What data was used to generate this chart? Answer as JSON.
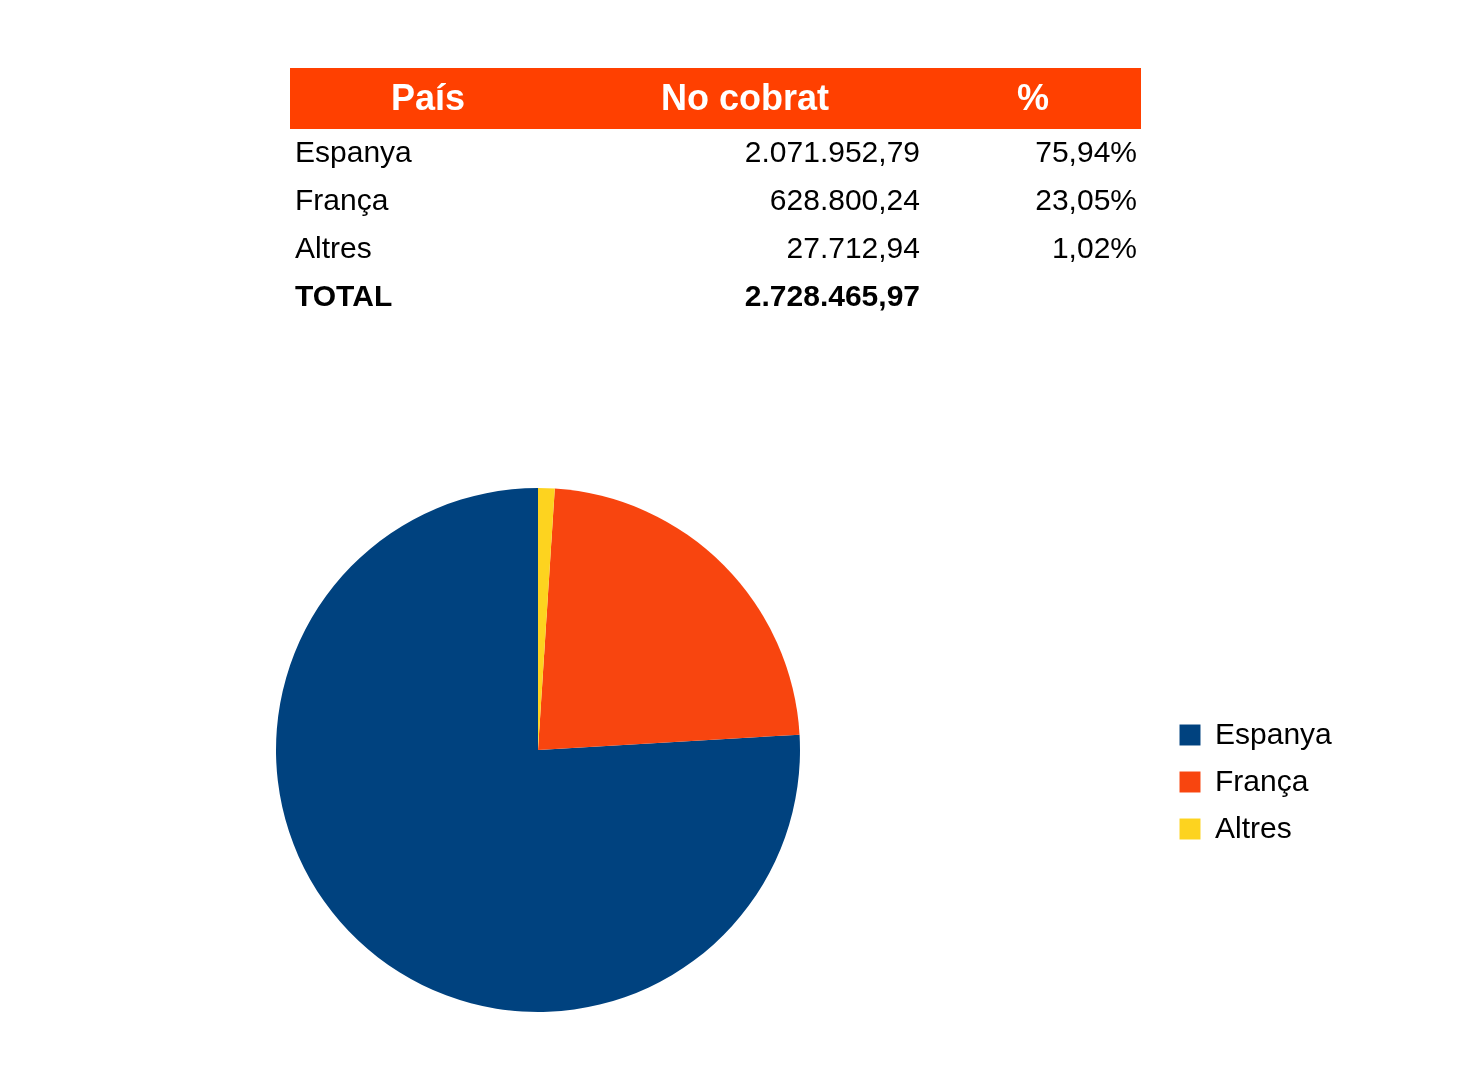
{
  "chart_data": {
    "type": "pie",
    "categories": [
      "Espanya",
      "França",
      "Altres"
    ],
    "values": [
      75.94,
      23.05,
      1.02
    ],
    "colors": [
      "#00427f",
      "#f8450f",
      "#fdd31f"
    ],
    "annotations": [
      "País",
      "No cobrat",
      "%",
      "2.071.952,79",
      "628.800,24",
      "27.712,94",
      "75,94%",
      "23,05%",
      "1,02%",
      "TOTAL"
    ],
    "totals": [
      "2.728.465,97"
    ],
    "legend": "right"
  }
}
